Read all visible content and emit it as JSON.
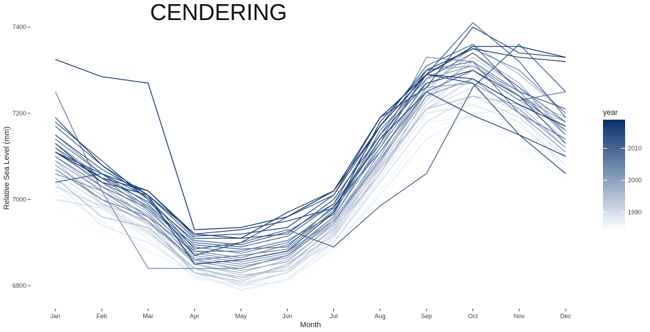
{
  "chart_data": {
    "type": "line",
    "title": "CENDERING",
    "xlabel": "Month",
    "ylabel": "Relative Sea Level (mm)",
    "categories": [
      "Jan",
      "Feb",
      "Mar",
      "Apr",
      "May",
      "Jun",
      "Jul",
      "Aug",
      "Sep",
      "Oct",
      "Nov",
      "Dec"
    ],
    "ylim": [
      6760,
      7450
    ],
    "yticks": [
      6800,
      7000,
      7200,
      7400
    ],
    "grid": false,
    "legend": {
      "title": "year",
      "placement": "right",
      "type": "colorbar",
      "range": [
        1985,
        2019
      ],
      "ticks": [
        1990,
        2000,
        2010
      ],
      "color_low": "#f7fbff",
      "color_high": "#08306b"
    },
    "series": [
      {
        "year": 1985,
        "values": [
          6985,
          6920,
          6905,
          6820,
          6790,
          6800,
          6870,
          7000,
          7130,
          7160,
          7150,
          7080
        ]
      },
      {
        "year": 1986,
        "values": [
          7010,
          6960,
          6920,
          6815,
          6800,
          6820,
          6880,
          7020,
          7160,
          7200,
          7120,
          7050
        ]
      },
      {
        "year": 1987,
        "values": [
          7020,
          6950,
          6880,
          6830,
          6810,
          6830,
          6900,
          7040,
          7180,
          7190,
          7170,
          7100
        ]
      },
      {
        "year": 1988,
        "values": [
          7050,
          6980,
          6910,
          6820,
          6800,
          6810,
          6890,
          7010,
          7140,
          7200,
          7210,
          7060
        ]
      },
      {
        "year": 1989,
        "values": [
          7040,
          6940,
          6900,
          6830,
          6790,
          6815,
          6900,
          7050,
          7200,
          7220,
          7180,
          7080
        ]
      },
      {
        "year": 1990,
        "values": [
          7000,
          6980,
          6920,
          6840,
          6800,
          6830,
          6910,
          7060,
          7210,
          7260,
          7200,
          7130
        ]
      },
      {
        "year": 1991,
        "values": [
          7060,
          6990,
          6930,
          6830,
          6820,
          6840,
          6900,
          7040,
          7180,
          7240,
          7190,
          7100
        ]
      },
      {
        "year": 1992,
        "values": [
          7070,
          7000,
          6940,
          6830,
          6805,
          6830,
          6920,
          7060,
          7220,
          7300,
          7230,
          7140
        ]
      },
      {
        "year": 1993,
        "values": [
          7030,
          6985,
          6925,
          6840,
          6815,
          6850,
          6915,
          7070,
          7210,
          7280,
          7220,
          7180
        ]
      },
      {
        "year": 1994,
        "values": [
          7080,
          7010,
          6950,
          6850,
          6825,
          6835,
          6925,
          7080,
          7230,
          7330,
          7260,
          7160
        ]
      },
      {
        "year": 1995,
        "values": [
          7090,
          6990,
          6950,
          6830,
          6810,
          6850,
          6930,
          7060,
          7240,
          7320,
          7240,
          7190
        ]
      },
      {
        "year": 1996,
        "values": [
          7050,
          6960,
          6935,
          6840,
          6820,
          6845,
          6935,
          7075,
          7210,
          7240,
          7220,
          7120
        ]
      },
      {
        "year": 1997,
        "values": [
          7100,
          7020,
          6960,
          6850,
          6830,
          6860,
          6940,
          7085,
          7250,
          7360,
          7290,
          7200
        ]
      },
      {
        "year": 1998,
        "values": [
          7080,
          7000,
          6945,
          6860,
          6835,
          6855,
          6945,
          7090,
          7260,
          7340,
          7270,
          7150
        ]
      },
      {
        "year": 1999,
        "values": [
          7120,
          7030,
          6960,
          6855,
          6840,
          6870,
          6950,
          7095,
          7250,
          7300,
          7230,
          7170
        ]
      },
      {
        "year": 2000,
        "values": [
          7110,
          7040,
          6970,
          6860,
          6845,
          6865,
          6955,
          7100,
          7280,
          7310,
          7250,
          7210
        ]
      },
      {
        "year": 2001,
        "values": [
          7090,
          7020,
          6965,
          6865,
          6850,
          6870,
          6945,
          7110,
          7260,
          7270,
          7210,
          7120
        ]
      },
      {
        "year": 2002,
        "values": [
          7150,
          7060,
          6980,
          6870,
          6855,
          6875,
          6960,
          7120,
          7300,
          7310,
          7240,
          7180
        ]
      },
      {
        "year": 2003,
        "values": [
          7130,
          7050,
          6975,
          6875,
          6860,
          6880,
          6950,
          7090,
          7240,
          7280,
          7200,
          7110
        ]
      },
      {
        "year": 2004,
        "values": [
          7060,
          7020,
          6840,
          6840,
          6840,
          6870,
          6960,
          7130,
          7330,
          7320,
          7250,
          7150
        ]
      },
      {
        "year": 2005,
        "values": [
          7070,
          7000,
          6960,
          6880,
          6865,
          6895,
          6970,
          7140,
          7290,
          7350,
          7300,
          7200
        ]
      },
      {
        "year": 2006,
        "values": [
          7250,
          7020,
          6950,
          6860,
          6870,
          6885,
          6975,
          7120,
          7270,
          7300,
          7230,
          7250
        ]
      },
      {
        "year": 2007,
        "values": [
          7100,
          7030,
          6980,
          6890,
          6875,
          6900,
          6980,
          7150,
          7300,
          7320,
          7200,
          7140
        ]
      },
      {
        "year": 2008,
        "values": [
          7140,
          7060,
          6990,
          6880,
          6880,
          6905,
          6965,
          7160,
          7280,
          7340,
          7260,
          7180
        ]
      },
      {
        "year": 2009,
        "values": [
          7110,
          7040,
          6985,
          6895,
          6885,
          6890,
          6985,
          7110,
          7250,
          7300,
          7240,
          7160
        ]
      },
      {
        "year": 2010,
        "values": [
          7170,
          7080,
          7000,
          6900,
          6890,
          6915,
          6990,
          7170,
          7310,
          7360,
          7250,
          7210
        ]
      },
      {
        "year": 2011,
        "values": [
          7120,
          7050,
          6995,
          6905,
          6895,
          6925,
          6990,
          7130,
          7290,
          7410,
          7320,
          7190
        ]
      },
      {
        "year": 2012,
        "values": [
          7040,
          7060,
          7005,
          6885,
          6900,
          6930,
          6890,
          6985,
          7060,
          7260,
          7360,
          7250
        ]
      },
      {
        "year": 2013,
        "values": [
          7150,
          7070,
          7010,
          6910,
          6910,
          6920,
          7000,
          7150,
          7270,
          7300,
          7240,
          7130
        ]
      },
      {
        "year": 2014,
        "values": [
          7180,
          7090,
          7000,
          6870,
          6900,
          6960,
          7010,
          7190,
          7260,
          7400,
          7340,
          7330
        ]
      },
      {
        "year": 2015,
        "values": [
          7110,
          7060,
          7020,
          6915,
          6920,
          6935,
          7010,
          7170,
          7290,
          7270,
          7150,
          7060
        ]
      },
      {
        "year": 2016,
        "values": [
          7130,
          7040,
          7010,
          6920,
          6930,
          6950,
          6980,
          7140,
          7250,
          7195,
          7150,
          7100
        ]
      },
      {
        "year": 2017,
        "values": [
          7190,
          7080,
          7010,
          6850,
          6860,
          6880,
          6970,
          7180,
          7300,
          7350,
          7330,
          7320
        ]
      },
      {
        "year": 2018,
        "values": [
          7110,
          7050,
          7020,
          6920,
          6910,
          6970,
          7020,
          7170,
          7290,
          7280,
          7220,
          7170
        ]
      },
      {
        "year": 2019,
        "values": [
          7325,
          7285,
          7270,
          6930,
          6935,
          6960,
          7020,
          7190,
          7290,
          7355,
          7355,
          7330
        ]
      }
    ]
  }
}
